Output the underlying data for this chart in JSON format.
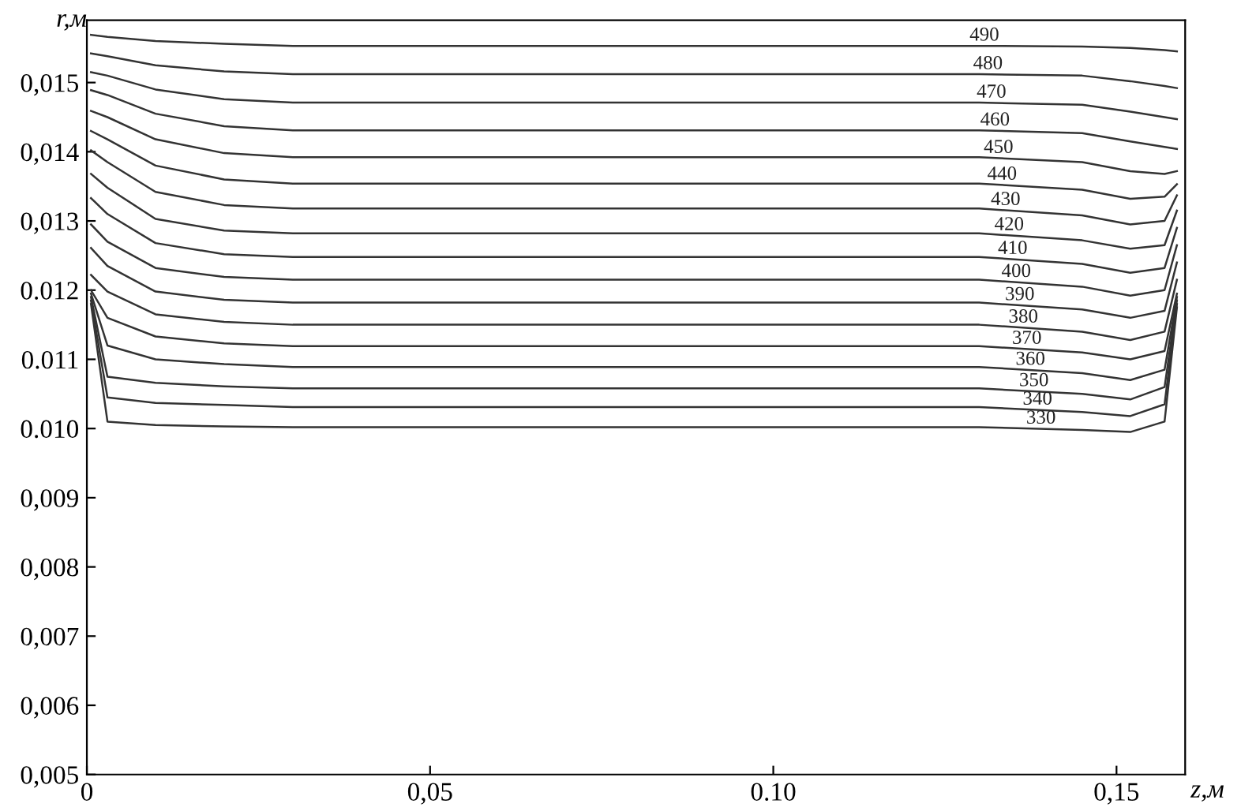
{
  "chart_data": {
    "type": "line",
    "xlabel": "z,м",
    "ylabel": "r,м",
    "x": [
      0.0006,
      0.003,
      0.01,
      0.02,
      0.03,
      0.13,
      0.145,
      0.152,
      0.157,
      0.1588
    ],
    "xlim": [
      0,
      0.16
    ],
    "ylim": [
      0.005,
      0.0159
    ],
    "xticks": [
      0,
      {
        "value": 0.05,
        "label": "0,05"
      },
      {
        "value": 0.1,
        "label": "0.10"
      },
      {
        "value": 0.15,
        "label": "0,15"
      }
    ],
    "yticks": [
      {
        "value": 0.005,
        "label": "0,005"
      },
      {
        "value": 0.006,
        "label": "0,006"
      },
      {
        "value": 0.007,
        "label": "0,007"
      },
      {
        "value": 0.008,
        "label": "0,008"
      },
      {
        "value": 0.009,
        "label": "0,009"
      },
      {
        "value": 0.01,
        "label": "0.010"
      },
      {
        "value": 0.011,
        "label": "0.011"
      },
      {
        "value": 0.012,
        "label": "0.012"
      },
      {
        "value": 0.013,
        "label": "0,013"
      },
      {
        "value": 0.014,
        "label": "0,014"
      },
      {
        "value": 0.015,
        "label": "0,015"
      }
    ],
    "grid": false,
    "legend": false,
    "marker": "none",
    "line_style": "solid",
    "series": [
      {
        "name": "490",
        "color": "#333333",
        "values": [
          0.01569,
          0.01566,
          0.0156,
          0.01556,
          0.01553,
          0.01553,
          0.01552,
          0.0155,
          0.01547,
          0.01545
        ]
      },
      {
        "name": "480",
        "color": "#333333",
        "values": [
          0.01542,
          0.01538,
          0.01525,
          0.01516,
          0.01512,
          0.01512,
          0.0151,
          0.01502,
          0.01495,
          0.01492
        ]
      },
      {
        "name": "470",
        "color": "#333333",
        "values": [
          0.01515,
          0.0151,
          0.0149,
          0.01476,
          0.01471,
          0.01471,
          0.01468,
          0.01458,
          0.0145,
          0.01447
        ]
      },
      {
        "name": "460",
        "color": "#333333",
        "values": [
          0.01489,
          0.01482,
          0.01455,
          0.01437,
          0.01431,
          0.01431,
          0.01427,
          0.01415,
          0.01407,
          0.01404
        ]
      },
      {
        "name": "450",
        "color": "#333333",
        "values": [
          0.01459,
          0.0145,
          0.01418,
          0.01398,
          0.01392,
          0.01392,
          0.01385,
          0.01372,
          0.01368,
          0.01372
        ]
      },
      {
        "name": "440",
        "color": "#333333",
        "values": [
          0.0143,
          0.01418,
          0.0138,
          0.0136,
          0.01354,
          0.01354,
          0.01345,
          0.01332,
          0.01335,
          0.01353
        ]
      },
      {
        "name": "430",
        "color": "#333333",
        "values": [
          0.01402,
          0.01385,
          0.01342,
          0.01323,
          0.01318,
          0.01318,
          0.01308,
          0.01295,
          0.013,
          0.01337
        ]
      },
      {
        "name": "420",
        "color": "#333333",
        "values": [
          0.01368,
          0.01348,
          0.01303,
          0.01286,
          0.01282,
          0.01282,
          0.01272,
          0.0126,
          0.01265,
          0.01315
        ]
      },
      {
        "name": "410",
        "color": "#333333",
        "values": [
          0.01333,
          0.0131,
          0.01268,
          0.01252,
          0.01248,
          0.01248,
          0.01238,
          0.01225,
          0.01232,
          0.0129
        ]
      },
      {
        "name": "400",
        "color": "#333333",
        "values": [
          0.01295,
          0.0127,
          0.01232,
          0.01219,
          0.01215,
          0.01215,
          0.01205,
          0.01192,
          0.012,
          0.01265
        ]
      },
      {
        "name": "390",
        "color": "#333333",
        "values": [
          0.01261,
          0.01235,
          0.01198,
          0.01186,
          0.01182,
          0.01182,
          0.01172,
          0.0116,
          0.0117,
          0.0124
        ]
      },
      {
        "name": "380",
        "color": "#333333",
        "values": [
          0.01222,
          0.01198,
          0.01165,
          0.01154,
          0.0115,
          0.0115,
          0.0114,
          0.01128,
          0.0114,
          0.01215
        ]
      },
      {
        "name": "370",
        "color": "#333333",
        "values": [
          0.012,
          0.0116,
          0.01133,
          0.01123,
          0.01119,
          0.01119,
          0.0111,
          0.011,
          0.01112,
          0.01195
        ]
      },
      {
        "name": "360",
        "color": "#333333",
        "values": [
          0.01195,
          0.0112,
          0.011,
          0.01093,
          0.01089,
          0.01089,
          0.0108,
          0.0107,
          0.01085,
          0.0119
        ]
      },
      {
        "name": "350",
        "color": "#333333",
        "values": [
          0.0119,
          0.01075,
          0.01066,
          0.01061,
          0.01058,
          0.01058,
          0.0105,
          0.01042,
          0.0106,
          0.01185
        ]
      },
      {
        "name": "340",
        "color": "#333333",
        "values": [
          0.01185,
          0.01045,
          0.01037,
          0.01034,
          0.01031,
          0.01031,
          0.01024,
          0.01018,
          0.01035,
          0.0118
        ]
      },
      {
        "name": "330",
        "color": "#333333",
        "values": [
          0.0118,
          0.0101,
          0.01005,
          0.01003,
          0.01002,
          0.01002,
          0.00998,
          0.00995,
          0.0101,
          0.01175
        ]
      }
    ]
  }
}
